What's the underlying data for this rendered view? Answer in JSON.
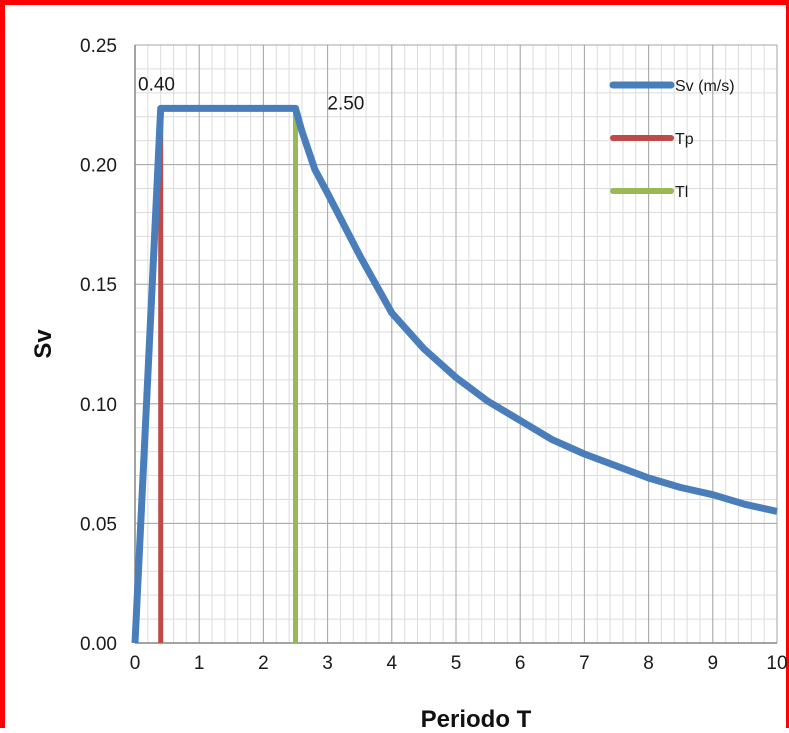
{
  "chart_data": {
    "type": "line",
    "title": "",
    "xlabel": "Periodo T",
    "ylabel": "Sv",
    "xlim": [
      0,
      10
    ],
    "ylim": [
      0,
      0.25
    ],
    "x_ticks": [
      "0",
      "1",
      "2",
      "3",
      "4",
      "5",
      "6",
      "7",
      "8",
      "9",
      "10"
    ],
    "y_ticks": [
      "0.00",
      "0.05",
      "0.10",
      "0.15",
      "0.20",
      "0.25"
    ],
    "grid": true,
    "legend_position": "top-right",
    "series": [
      {
        "name": "Sv (m/s)",
        "color": "#4a7ebb",
        "x": [
          0,
          0.4,
          2.3,
          2.4,
          2.5,
          2.6,
          2.8,
          3,
          3.5,
          4,
          4.5,
          5,
          5.5,
          6,
          6.5,
          7,
          7.5,
          8,
          8.5,
          9,
          9.5,
          10
        ],
        "y": [
          0,
          0.2235,
          0.2235,
          0.2235,
          0.2235,
          0.214,
          0.198,
          0.188,
          0.162,
          0.138,
          0.123,
          0.111,
          0.101,
          0.093,
          0.085,
          0.079,
          0.074,
          0.069,
          0.065,
          0.062,
          0.058,
          0.055
        ]
      },
      {
        "name": "Tp",
        "color": "#be4b48",
        "x": [
          0.4,
          0.4
        ],
        "y": [
          0,
          0.2235
        ]
      },
      {
        "name": "Tl",
        "color": "#98b954",
        "x": [
          2.5,
          2.5
        ],
        "y": [
          0,
          0.2235
        ]
      }
    ],
    "annotations": [
      {
        "text": "0.40",
        "x": 0.0,
        "y": 0.2335
      },
      {
        "text": "2.50",
        "x": 2.95,
        "y": 0.2255
      }
    ]
  }
}
